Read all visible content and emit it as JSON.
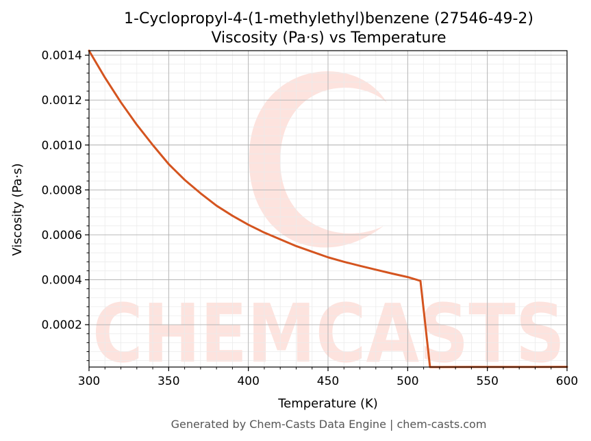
{
  "chart_data": {
    "type": "line",
    "title": "1-Cyclopropyl-4-(1-methylethyl)benzene (27546-49-2)",
    "subtitle": "Viscosity (Pa·s) vs Temperature",
    "xlabel": "Temperature (K)",
    "ylabel": "Viscosity (Pa·s)",
    "xlim": [
      300,
      600
    ],
    "ylim": [
      1.14e-05,
      0.00142
    ],
    "grid": true,
    "minor_grid": true,
    "x_ticks": [
      {
        "value": 300,
        "label": "300"
      },
      {
        "value": 350,
        "label": "350"
      },
      {
        "value": 400,
        "label": "400"
      },
      {
        "value": 450,
        "label": "450"
      },
      {
        "value": 500,
        "label": "500"
      },
      {
        "value": 550,
        "label": "550"
      },
      {
        "value": 600,
        "label": "600"
      }
    ],
    "y_ticks": [
      {
        "value": 0.0002,
        "label": "0.0002"
      },
      {
        "value": 0.0004,
        "label": "0.0004"
      },
      {
        "value": 0.0006,
        "label": "0.0006"
      },
      {
        "value": 0.0008,
        "label": "0.0008"
      },
      {
        "value": 0.001,
        "label": "0.0010"
      },
      {
        "value": 0.0012,
        "label": "0.0012"
      },
      {
        "value": 0.0014,
        "label": "0.0014"
      }
    ],
    "series": [
      {
        "color": "#d4541f",
        "x": [
          300,
          310,
          320,
          330,
          340,
          350,
          360,
          370,
          380,
          390,
          400,
          410,
          420,
          430,
          440,
          450,
          460,
          470,
          480,
          490,
          500,
          508,
          514,
          520,
          540,
          560,
          580,
          600
        ],
        "y": [
          0.00142,
          0.0013,
          0.00119,
          0.00109,
          0.001,
          0.000915,
          0.000845,
          0.000785,
          0.00073,
          0.000685,
          0.000645,
          0.00061,
          0.00058,
          0.00055,
          0.000525,
          0.0005,
          0.00048,
          0.000462,
          0.000445,
          0.000428,
          0.000412,
          0.000395,
          1.14e-05,
          1.15e-05,
          1.16e-05,
          1.17e-05,
          1.18e-05,
          1.2e-05
        ]
      }
    ]
  },
  "watermark": {
    "text": "CHEMCASTS",
    "color": "#fde3de"
  },
  "footer": "Generated by Chem-Casts Data Engine | chem-casts.com"
}
